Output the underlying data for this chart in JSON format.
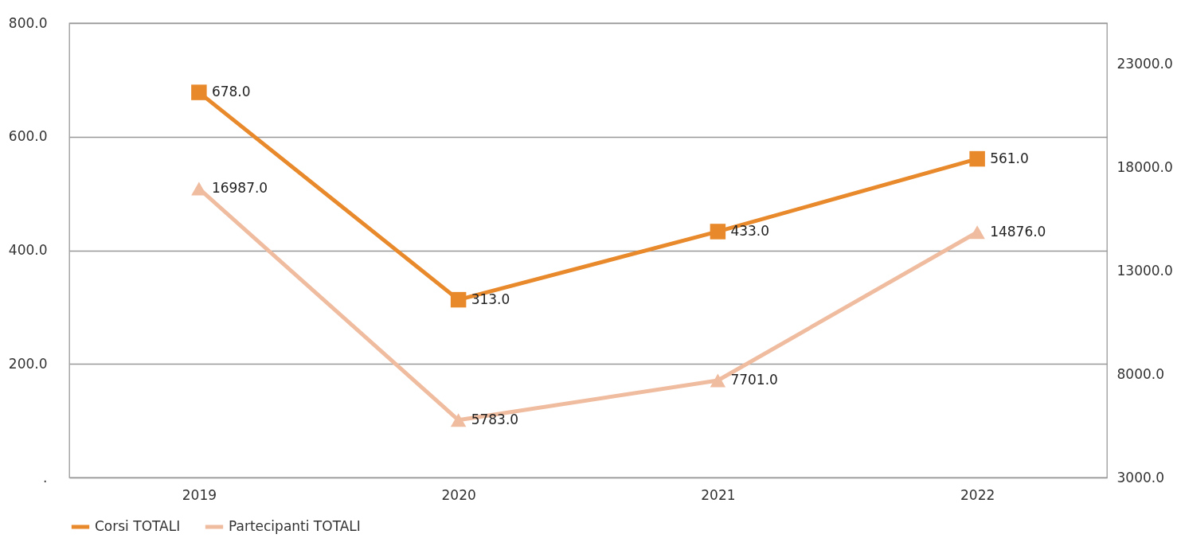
{
  "chart_data": {
    "type": "line",
    "categories": [
      "2019",
      "2020",
      "2021",
      "2022"
    ],
    "series": [
      {
        "name": "Corsi TOTALI",
        "color": "#e8892b",
        "marker": "square",
        "values": [
          678,
          313,
          433,
          561
        ],
        "value_labels": [
          "678.0",
          "313.0",
          "433.0",
          "561.0"
        ]
      },
      {
        "name": "Partecipanti TOTALI",
        "color": "#f0bca0",
        "marker": "triangle",
        "axis": "y2",
        "values": [
          16987,
          5783,
          7701,
          14876
        ],
        "value_labels": [
          "16987.0",
          "5783.0",
          "7701.0",
          "14876.0"
        ]
      }
    ],
    "ylim": [
      0,
      800
    ],
    "yticks": [
      {
        "value": 0,
        "label": "."
      },
      {
        "value": 200,
        "label": "200.0"
      },
      {
        "value": 400,
        "label": "400.0"
      },
      {
        "value": 600,
        "label": "600.0"
      },
      {
        "value": 800,
        "label": "800.0"
      }
    ],
    "y2lim": [
      3000,
      25000
    ],
    "y2ticks": [
      {
        "value": 3000,
        "label": "3000.0"
      },
      {
        "value": 8000,
        "label": "8000.0"
      },
      {
        "value": 13000,
        "label": "13000.0"
      },
      {
        "value": 18000,
        "label": "18000.0"
      },
      {
        "value": 23000,
        "label": "23000.0"
      }
    ],
    "grid": "y",
    "legend": "bottom",
    "line_style": "solid"
  }
}
